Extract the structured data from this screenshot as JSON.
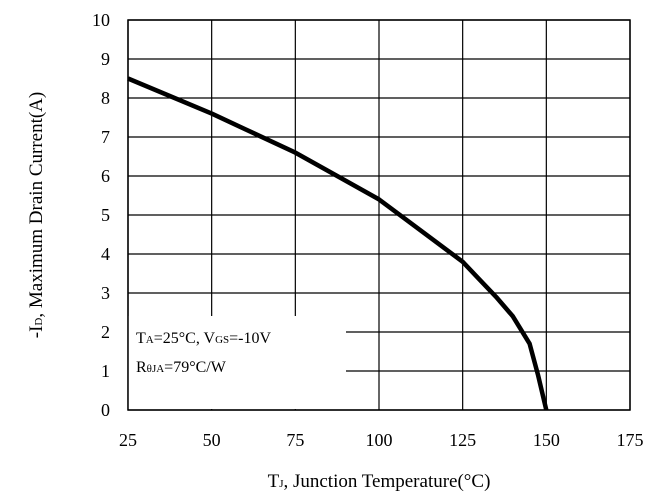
{
  "chart_data": {
    "type": "line",
    "title": "",
    "xlabel": {
      "main": "T",
      "sub": "J",
      "rest": ", Junction Temperature(°C)"
    },
    "ylabel": {
      "pre": "-I",
      "sub": "D",
      "rest": ", Maximum Drain Current(A)"
    },
    "xlim": [
      25,
      175
    ],
    "ylim": [
      0,
      10
    ],
    "xticks": [
      "25",
      "50",
      "75",
      "100",
      "125",
      "150",
      "175"
    ],
    "yticks": [
      "0",
      "1",
      "2",
      "3",
      "4",
      "5",
      "6",
      "7",
      "8",
      "9",
      "10"
    ],
    "grid": true,
    "series": [
      {
        "x": [
          25,
          37.5,
          50,
          62.5,
          75,
          87.5,
          100,
          112.5,
          125,
          130,
          135,
          140,
          145,
          147.5,
          150
        ],
        "y": [
          8.5,
          8.05,
          7.6,
          7.1,
          6.6,
          6.0,
          5.4,
          4.6,
          3.8,
          3.35,
          2.9,
          2.4,
          1.7,
          0.9,
          0
        ]
      }
    ],
    "annotation": {
      "line1": {
        "a": "T",
        "a_sub": "A",
        "b": "=25°C, V",
        "b_sub": "GS",
        "c": "=-10V"
      },
      "line2": {
        "a": "R",
        "a_sub": "θJA",
        "b": "=79°C/W"
      }
    },
    "colors": {
      "line": "#000000",
      "grid": "#000000",
      "background": "#ffffff"
    }
  }
}
